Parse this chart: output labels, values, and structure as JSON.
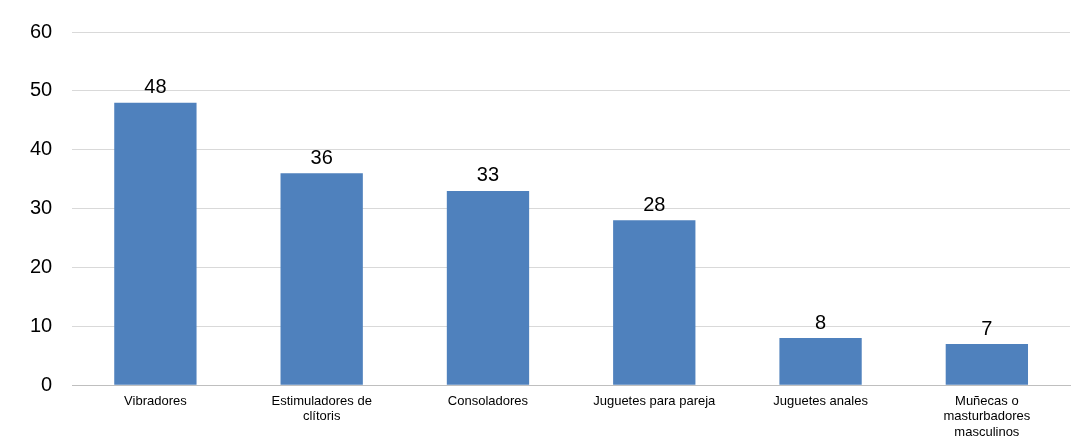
{
  "chart_data": {
    "type": "bar",
    "categories": [
      "Vibradores",
      "Estimuladores de clítoris",
      "Consoladores",
      "Juguetes para pareja",
      "Juguetes anales",
      "Muñecas o masturbadores masculinos"
    ],
    "values": [
      48,
      36,
      33,
      28,
      8,
      7
    ],
    "color": "#4f81bd",
    "ylim": [
      0,
      60
    ],
    "yticks": [
      0,
      10,
      20,
      30,
      40,
      50,
      60
    ],
    "grid": "y",
    "data_labels": true,
    "legend": false
  }
}
